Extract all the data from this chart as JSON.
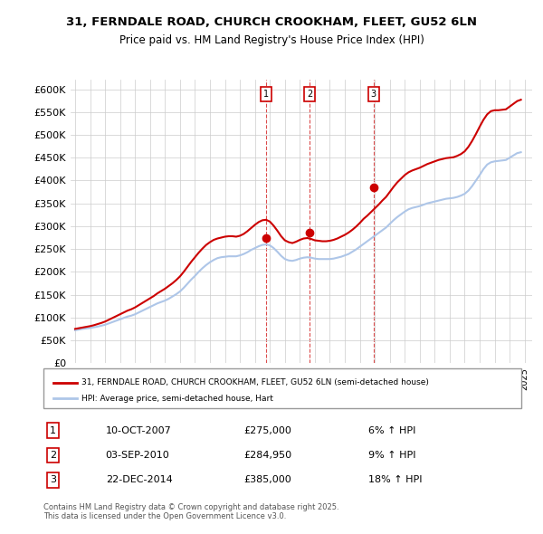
{
  "title_line1": "31, FERNDALE ROAD, CHURCH CROOKHAM, FLEET, GU52 6LN",
  "title_line2": "Price paid vs. HM Land Registry's House Price Index (HPI)",
  "ylabel": "",
  "xlabel": "",
  "ylim": [
    0,
    620000
  ],
  "yticks": [
    0,
    50000,
    100000,
    150000,
    200000,
    250000,
    300000,
    350000,
    400000,
    450000,
    500000,
    550000,
    600000
  ],
  "ytick_labels": [
    "£0",
    "£50K",
    "£100K",
    "£150K",
    "£200K",
    "£250K",
    "£300K",
    "£350K",
    "£400K",
    "£450K",
    "£500K",
    "£550K",
    "£600K"
  ],
  "xtick_years": [
    1995,
    1996,
    1997,
    1998,
    1999,
    2000,
    2001,
    2002,
    2003,
    2004,
    2005,
    2006,
    2007,
    2008,
    2009,
    2010,
    2011,
    2012,
    2013,
    2014,
    2015,
    2016,
    2017,
    2018,
    2019,
    2020,
    2021,
    2022,
    2023,
    2024,
    2025
  ],
  "hpi_color": "#aec6e8",
  "price_color": "#cc0000",
  "marker_color": "#cc0000",
  "grid_color": "#cccccc",
  "bg_color": "#ffffff",
  "purchases": [
    {
      "label": "1",
      "date": "2007-10-10",
      "price": 275000,
      "pct": "6%",
      "dir": "↑"
    },
    {
      "label": "2",
      "date": "2010-09-03",
      "price": 284950,
      "pct": "9%",
      "dir": "↑"
    },
    {
      "label": "3",
      "date": "2014-12-22",
      "price": 385000,
      "pct": "18%",
      "dir": "↑"
    }
  ],
  "legend_price_label": "31, FERNDALE ROAD, CHURCH CROOKHAM, FLEET, GU52 6LN (semi-detached house)",
  "legend_hpi_label": "HPI: Average price, semi-detached house, Hart",
  "footnote": "Contains HM Land Registry data © Crown copyright and database right 2025.\nThis data is licensed under the Open Government Licence v3.0.",
  "hpi_data_years": [
    1995,
    1995.25,
    1995.5,
    1995.75,
    1996,
    1996.25,
    1996.5,
    1996.75,
    1997,
    1997.25,
    1997.5,
    1997.75,
    1998,
    1998.25,
    1998.5,
    1998.75,
    1999,
    1999.25,
    1999.5,
    1999.75,
    2000,
    2000.25,
    2000.5,
    2000.75,
    2001,
    2001.25,
    2001.5,
    2001.75,
    2002,
    2002.25,
    2002.5,
    2002.75,
    2003,
    2003.25,
    2003.5,
    2003.75,
    2004,
    2004.25,
    2004.5,
    2004.75,
    2005,
    2005.25,
    2005.5,
    2005.75,
    2006,
    2006.25,
    2006.5,
    2006.75,
    2007,
    2007.25,
    2007.5,
    2007.75,
    2008,
    2008.25,
    2008.5,
    2008.75,
    2009,
    2009.25,
    2009.5,
    2009.75,
    2010,
    2010.25,
    2010.5,
    2010.75,
    2011,
    2011.25,
    2011.5,
    2011.75,
    2012,
    2012.25,
    2012.5,
    2012.75,
    2013,
    2013.25,
    2013.5,
    2013.75,
    2014,
    2014.25,
    2014.5,
    2014.75,
    2015,
    2015.25,
    2015.5,
    2015.75,
    2016,
    2016.25,
    2016.5,
    2016.75,
    2017,
    2017.25,
    2017.5,
    2017.75,
    2018,
    2018.25,
    2018.5,
    2018.75,
    2019,
    2019.25,
    2019.5,
    2019.75,
    2020,
    2020.25,
    2020.5,
    2020.75,
    2021,
    2021.25,
    2021.5,
    2021.75,
    2022,
    2022.25,
    2022.5,
    2022.75,
    2023,
    2023.25,
    2023.5,
    2023.75,
    2024,
    2024.25,
    2024.5,
    2024.75
  ],
  "hpi_values": [
    72000,
    73500,
    75000,
    76000,
    77000,
    78500,
    80000,
    82000,
    84000,
    87000,
    90000,
    93000,
    96000,
    99000,
    102000,
    104000,
    107000,
    111000,
    115000,
    119000,
    123000,
    127000,
    131000,
    134000,
    137000,
    141000,
    146000,
    151000,
    157000,
    165000,
    174000,
    183000,
    191000,
    200000,
    208000,
    215000,
    221000,
    226000,
    230000,
    232000,
    233000,
    234000,
    234000,
    234000,
    236000,
    239000,
    243000,
    248000,
    252000,
    256000,
    259000,
    260000,
    258000,
    252000,
    244000,
    235000,
    228000,
    225000,
    224000,
    226000,
    229000,
    231000,
    232000,
    231000,
    229000,
    228000,
    228000,
    228000,
    228000,
    229000,
    231000,
    233000,
    236000,
    239000,
    244000,
    249000,
    255000,
    261000,
    267000,
    273000,
    279000,
    285000,
    291000,
    297000,
    305000,
    313000,
    320000,
    326000,
    332000,
    337000,
    340000,
    342000,
    344000,
    347000,
    350000,
    352000,
    354000,
    356000,
    358000,
    360000,
    361000,
    362000,
    364000,
    367000,
    371000,
    378000,
    388000,
    400000,
    412000,
    425000,
    435000,
    440000,
    442000,
    443000,
    444000,
    445000,
    450000,
    455000,
    460000,
    462000
  ],
  "price_data_years": [
    1995,
    1995.25,
    1995.5,
    1995.75,
    1996,
    1996.25,
    1996.5,
    1996.75,
    1997,
    1997.25,
    1997.5,
    1997.75,
    1998,
    1998.25,
    1998.5,
    1998.75,
    1999,
    1999.25,
    1999.5,
    1999.75,
    2000,
    2000.25,
    2000.5,
    2000.75,
    2001,
    2001.25,
    2001.5,
    2001.75,
    2002,
    2002.25,
    2002.5,
    2002.75,
    2003,
    2003.25,
    2003.5,
    2003.75,
    2004,
    2004.25,
    2004.5,
    2004.75,
    2005,
    2005.25,
    2005.5,
    2005.75,
    2006,
    2006.25,
    2006.5,
    2006.75,
    2007,
    2007.25,
    2007.5,
    2007.75,
    2008,
    2008.25,
    2008.5,
    2008.75,
    2009,
    2009.25,
    2009.5,
    2009.75,
    2010,
    2010.25,
    2010.5,
    2010.75,
    2011,
    2011.25,
    2011.5,
    2011.75,
    2012,
    2012.25,
    2012.5,
    2012.75,
    2013,
    2013.25,
    2013.5,
    2013.75,
    2014,
    2014.25,
    2014.5,
    2014.75,
    2015,
    2015.25,
    2015.5,
    2015.75,
    2016,
    2016.25,
    2016.5,
    2016.75,
    2017,
    2017.25,
    2017.5,
    2017.75,
    2018,
    2018.25,
    2018.5,
    2018.75,
    2019,
    2019.25,
    2019.5,
    2019.75,
    2020,
    2020.25,
    2020.5,
    2020.75,
    2021,
    2021.25,
    2021.5,
    2021.75,
    2022,
    2022.25,
    2022.5,
    2022.75,
    2023,
    2023.25,
    2023.5,
    2023.75,
    2024,
    2024.25,
    2024.5,
    2024.75
  ],
  "price_index_values": [
    75000,
    76500,
    78000,
    79500,
    81000,
    83000,
    85500,
    88000,
    91000,
    95000,
    99000,
    103000,
    107000,
    111000,
    115000,
    118000,
    122000,
    127000,
    132000,
    137000,
    142000,
    147000,
    153000,
    158000,
    163000,
    169000,
    175000,
    182000,
    190000,
    200000,
    211000,
    222000,
    232000,
    242000,
    251000,
    259000,
    265000,
    270000,
    273000,
    275000,
    277000,
    278000,
    278000,
    277000,
    279000,
    283000,
    289000,
    296000,
    303000,
    309000,
    313000,
    314000,
    310000,
    301000,
    290000,
    278000,
    269000,
    265000,
    263000,
    266000,
    270000,
    273000,
    274000,
    272000,
    269000,
    268000,
    267000,
    267000,
    268000,
    270000,
    273000,
    277000,
    281000,
    286000,
    292000,
    299000,
    307000,
    316000,
    323000,
    331000,
    339000,
    347000,
    356000,
    364000,
    375000,
    386000,
    396000,
    404000,
    412000,
    418000,
    422000,
    425000,
    428000,
    432000,
    436000,
    439000,
    442000,
    445000,
    447000,
    449000,
    450000,
    451000,
    454000,
    458000,
    464000,
    474000,
    487000,
    502000,
    518000,
    533000,
    545000,
    552000,
    554000,
    554000,
    555000,
    556000,
    562000,
    568000,
    574000,
    577000
  ]
}
